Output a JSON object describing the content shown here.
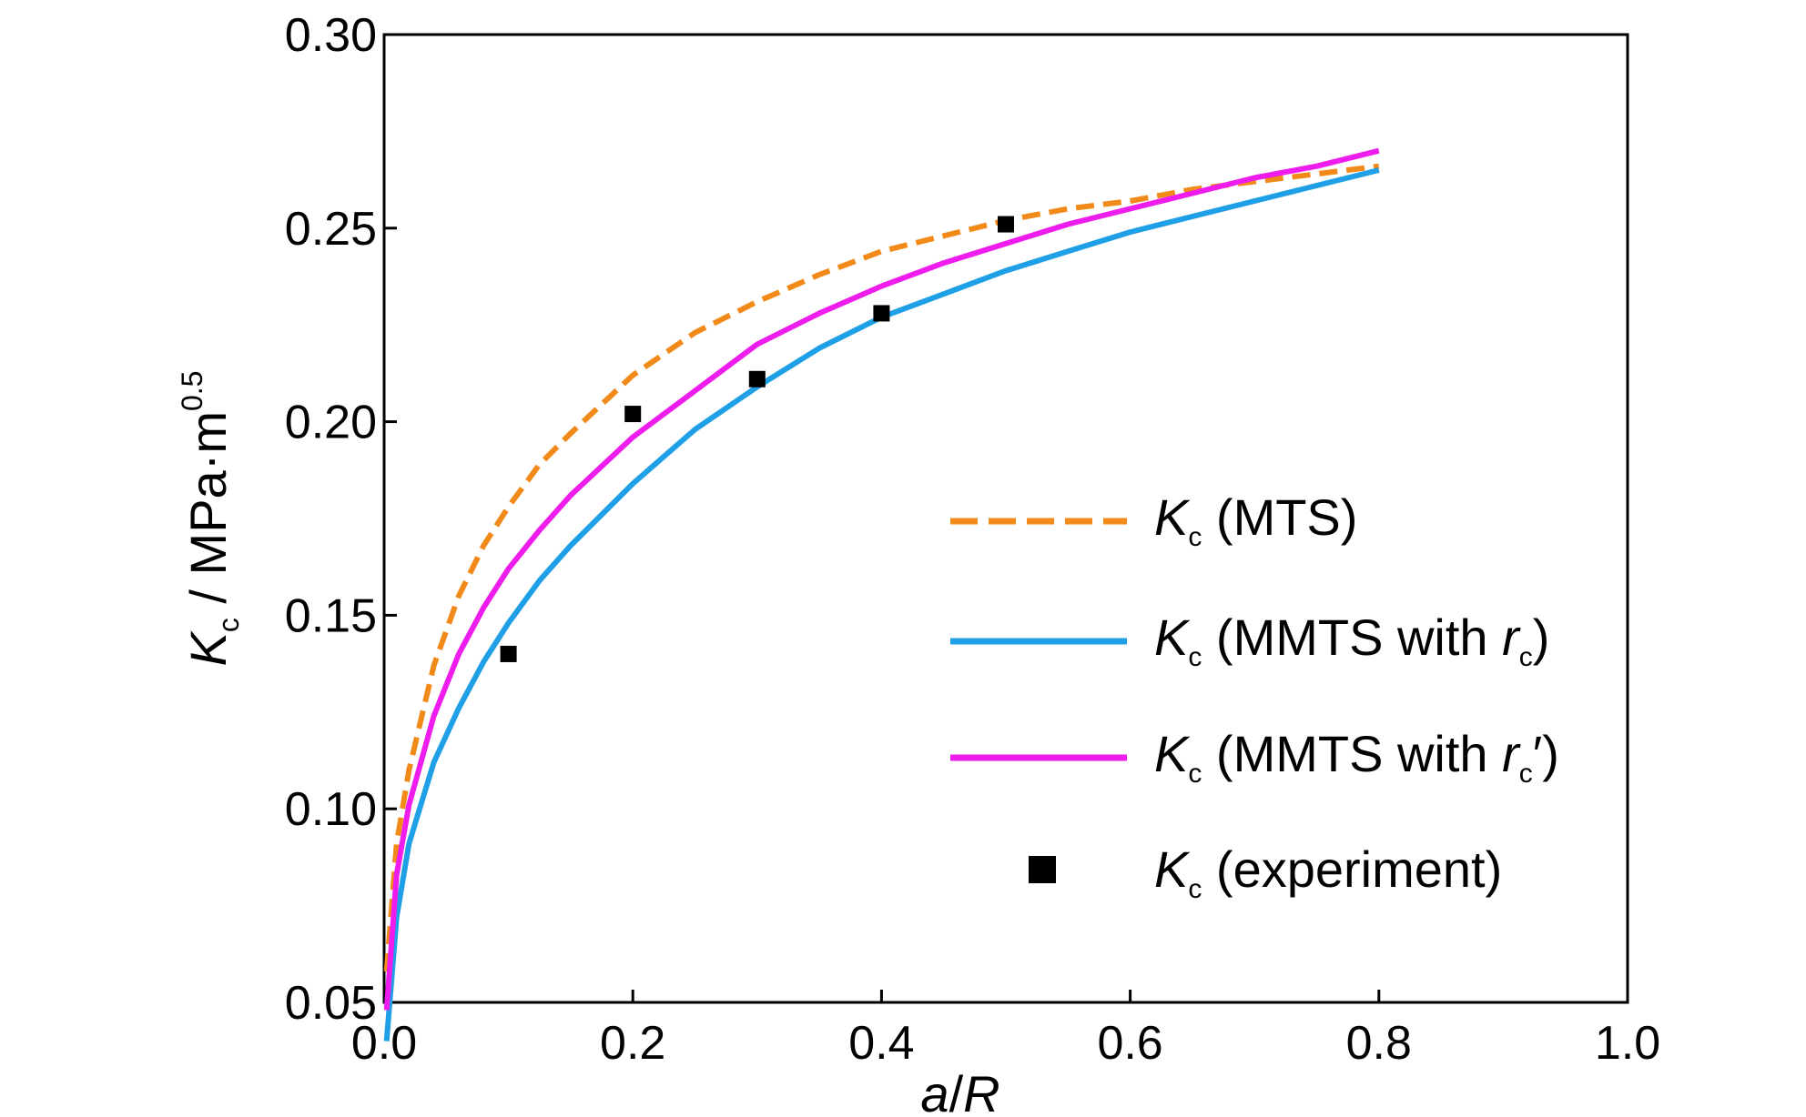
{
  "chart_data": {
    "type": "line",
    "xlabel": {
      "italic": "a",
      "rest": "/",
      "italic2": "R"
    },
    "ylabel": {
      "italic": "K",
      "sub": "c",
      "rest": " / MPa·m",
      "sup": "0.5"
    },
    "xlim": [
      0.0,
      1.0
    ],
    "ylim": [
      0.05,
      0.3
    ],
    "x_ticks": [
      "0.0",
      "0.2",
      "0.4",
      "0.6",
      "0.8",
      "1.0"
    ],
    "y_ticks": [
      "0.05",
      "0.10",
      "0.15",
      "0.20",
      "0.25",
      "0.30"
    ],
    "grid": false,
    "legend_position": "right",
    "series": [
      {
        "name": "Kc (MTS)",
        "label": {
          "italic": "K",
          "sub": "c",
          "rest": " (MTS)",
          "italic2": "",
          "sub2": "",
          "tail": ""
        },
        "style": "dashed",
        "color": "#f28a1a",
        "x": [
          0.002,
          0.01,
          0.02,
          0.04,
          0.06,
          0.08,
          0.1,
          0.125,
          0.15,
          0.2,
          0.25,
          0.3,
          0.35,
          0.4,
          0.45,
          0.5,
          0.55,
          0.6,
          0.65,
          0.7,
          0.75,
          0.8
        ],
        "y": [
          0.058,
          0.091,
          0.11,
          0.137,
          0.155,
          0.168,
          0.178,
          0.189,
          0.197,
          0.212,
          0.223,
          0.231,
          0.238,
          0.244,
          0.248,
          0.252,
          0.255,
          0.257,
          0.26,
          0.262,
          0.264,
          0.266
        ]
      },
      {
        "name": "Kc (MMTS with rc)",
        "label": {
          "italic": "K",
          "sub": "c",
          "rest": " (MMTS with ",
          "italic2": "r",
          "sub2": "c",
          "tail": ")"
        },
        "style": "solid",
        "color": "#1fa0e6",
        "x": [
          0.002,
          0.01,
          0.02,
          0.04,
          0.06,
          0.08,
          0.1,
          0.125,
          0.15,
          0.2,
          0.25,
          0.3,
          0.35,
          0.4,
          0.45,
          0.5,
          0.55,
          0.6,
          0.65,
          0.7,
          0.75,
          0.8
        ],
        "y": [
          0.04,
          0.072,
          0.091,
          0.112,
          0.126,
          0.138,
          0.148,
          0.159,
          0.168,
          0.184,
          0.198,
          0.209,
          0.219,
          0.227,
          0.233,
          0.239,
          0.244,
          0.249,
          0.253,
          0.257,
          0.261,
          0.265
        ]
      },
      {
        "name": "Kc (MMTS with rc′)",
        "label": {
          "italic": "K",
          "sub": "c",
          "rest": " (MMTS with ",
          "italic2": "r",
          "sub2": "c",
          "tail": "′)"
        },
        "style": "solid",
        "color": "#ee1ded",
        "x": [
          0.002,
          0.01,
          0.02,
          0.04,
          0.06,
          0.08,
          0.1,
          0.125,
          0.15,
          0.2,
          0.25,
          0.3,
          0.35,
          0.4,
          0.45,
          0.5,
          0.55,
          0.6,
          0.65,
          0.7,
          0.75,
          0.8
        ],
        "y": [
          0.048,
          0.083,
          0.101,
          0.124,
          0.14,
          0.152,
          0.162,
          0.172,
          0.181,
          0.196,
          0.208,
          0.22,
          0.228,
          0.235,
          0.241,
          0.246,
          0.251,
          0.255,
          0.259,
          0.263,
          0.266,
          0.27
        ]
      },
      {
        "name": "Kc (experiment)",
        "label": {
          "italic": "K",
          "sub": "c",
          "rest": " (experiment)",
          "italic2": "",
          "sub2": "",
          "tail": ""
        },
        "style": "marker",
        "color": "#000000",
        "x": [
          0.1,
          0.2,
          0.3,
          0.4,
          0.5
        ],
        "y": [
          0.14,
          0.202,
          0.211,
          0.228,
          0.251
        ]
      }
    ]
  }
}
